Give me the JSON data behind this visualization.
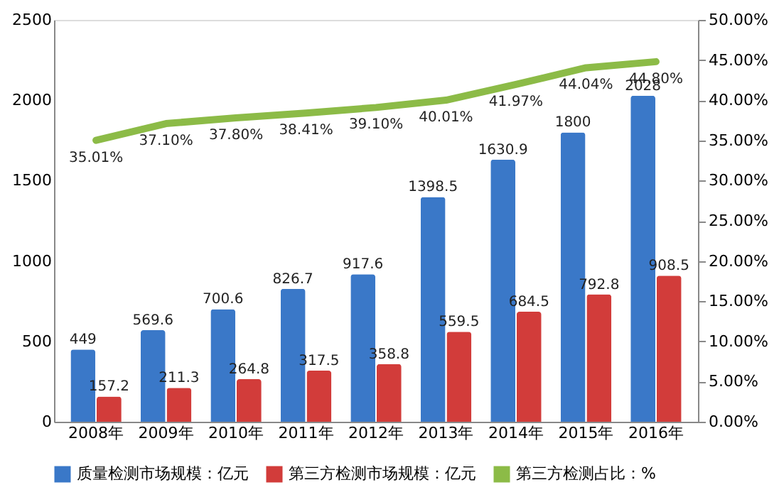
{
  "chart_data": {
    "type": "bar",
    "categories": [
      "2008年",
      "2009年",
      "2010年",
      "2011年",
      "2012年",
      "2013年",
      "2014年",
      "2015年",
      "2016年"
    ],
    "series": [
      {
        "name": "质量检测市场规模：亿元",
        "color": "#3a78c8",
        "values": [
          449,
          569.6,
          700.6,
          826.7,
          917.6,
          1398.5,
          1630.9,
          1800,
          2028
        ]
      },
      {
        "name": "第三方检测市场规模：亿元",
        "color": "#d23c3a",
        "values": [
          157.2,
          211.3,
          264.8,
          317.5,
          358.8,
          559.5,
          684.5,
          792.8,
          908.5
        ]
      },
      {
        "name": "第三方检测占比：%",
        "type": "line",
        "axis": "y2",
        "color": "#8cbb47",
        "values": [
          35.01,
          37.1,
          37.8,
          38.41,
          39.1,
          40.01,
          41.97,
          44.04,
          44.8
        ],
        "value_labels": [
          "35.01%",
          "37.10%",
          "37.80%",
          "38.41%",
          "39.10%",
          "40.01%",
          "41.97%",
          "44.04%",
          "44.80%"
        ]
      }
    ],
    "data_labels": true,
    "ylim": [
      0,
      2500
    ],
    "yticks": [
      0,
      500,
      1000,
      1500,
      2000,
      2500
    ],
    "y2lim": [
      0,
      50
    ],
    "y2ticks": [
      {
        "value": 0,
        "label": "0.00%"
      },
      {
        "value": 5,
        "label": "5.00%"
      },
      {
        "value": 10,
        "label": "10.00%"
      },
      {
        "value": 15,
        "label": "15.00%"
      },
      {
        "value": 20,
        "label": "20.00%"
      },
      {
        "value": 25,
        "label": "25.00%"
      },
      {
        "value": 30,
        "label": "30.00%"
      },
      {
        "value": 35,
        "label": "35.00%"
      },
      {
        "value": 40,
        "label": "40.00%"
      },
      {
        "value": 45,
        "label": "45.00%"
      },
      {
        "value": 50,
        "label": "50.00%"
      }
    ],
    "grid": false,
    "legend": "bottom"
  }
}
